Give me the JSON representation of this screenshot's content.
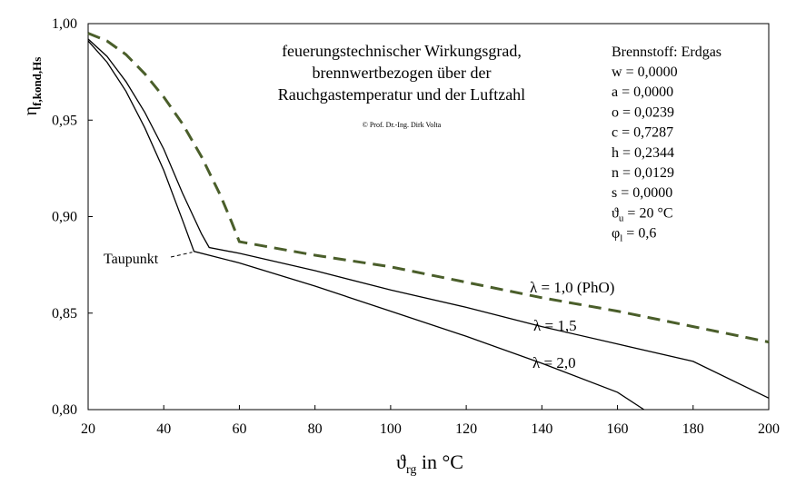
{
  "chart_data": {
    "type": "line",
    "title_lines": [
      "feuerungstechnischer Wirkungsgrad,",
      "brennwertbezogen über der",
      "Rauchgastemperatur und der Luftzahl"
    ],
    "copyright": "© Prof. Dr.-Ing. Dirk Volta",
    "ylabel_main": "η",
    "ylabel_sub": "f,kond,Hs",
    "xlabel_main": "ϑ",
    "xlabel_sub": "rg",
    "xlabel_unit": " in °C",
    "xlim": [
      20,
      200
    ],
    "ylim": [
      0.8,
      1.0
    ],
    "x_ticks": [
      20,
      40,
      60,
      80,
      100,
      120,
      140,
      160,
      180,
      200
    ],
    "y_ticks": [
      0.8,
      0.85,
      0.9,
      0.95,
      1.0
    ],
    "y_tick_labels": [
      "0,80",
      "0,85",
      "0,90",
      "0,95",
      "1,00"
    ],
    "grid": false,
    "series": [
      {
        "name": "λ = 1,0 (PhO)",
        "style": "dashed",
        "color": "#4a5e2a",
        "x": [
          20,
          25,
          30,
          35,
          40,
          45,
          50,
          55,
          58,
          60,
          80,
          100,
          120,
          140,
          160,
          180,
          200
        ],
        "y": [
          0.995,
          0.991,
          0.984,
          0.974,
          0.962,
          0.948,
          0.931,
          0.911,
          0.897,
          0.887,
          0.88,
          0.874,
          0.866,
          0.858,
          0.851,
          0.843,
          0.835
        ]
      },
      {
        "name": "λ = 1,5",
        "style": "solid",
        "color": "#000000",
        "x": [
          20,
          25,
          30,
          35,
          40,
          45,
          50,
          52,
          60,
          80,
          100,
          120,
          140,
          160,
          180,
          200
        ],
        "y": [
          0.992,
          0.983,
          0.97,
          0.954,
          0.935,
          0.912,
          0.891,
          0.884,
          0.881,
          0.872,
          0.862,
          0.853,
          0.843,
          0.834,
          0.825,
          0.806
        ]
      },
      {
        "name": "λ = 2,0",
        "style": "solid",
        "color": "#000000",
        "x": [
          20,
          25,
          30,
          35,
          40,
          45,
          48,
          60,
          80,
          100,
          120,
          140,
          160,
          167
        ],
        "y": [
          0.991,
          0.98,
          0.965,
          0.946,
          0.924,
          0.898,
          0.882,
          0.876,
          0.864,
          0.851,
          0.838,
          0.824,
          0.809,
          0.8
        ]
      }
    ],
    "annotation": "Taupunkt",
    "info_box": {
      "heading": "Brennstoff: Erdgas",
      "rows": [
        {
          "var": "w",
          "sub": "",
          "value": " = 0,0000"
        },
        {
          "var": "a",
          "sub": "",
          "value": " = 0,0000"
        },
        {
          "var": "o",
          "sub": "",
          "value": " = 0,0239"
        },
        {
          "var": "c",
          "sub": "",
          "value": " = 0,7287"
        },
        {
          "var": "h",
          "sub": "",
          "value": " = 0,2344"
        },
        {
          "var": "n",
          "sub": "",
          "value": " = 0,0129"
        },
        {
          "var": "s",
          "sub": "",
          "value": " = 0,0000"
        },
        {
          "var": "ϑ",
          "sub": "u",
          "value": " = 20 °C"
        },
        {
          "var": "φ",
          "sub": "l",
          "value": " = 0,6"
        }
      ]
    }
  }
}
